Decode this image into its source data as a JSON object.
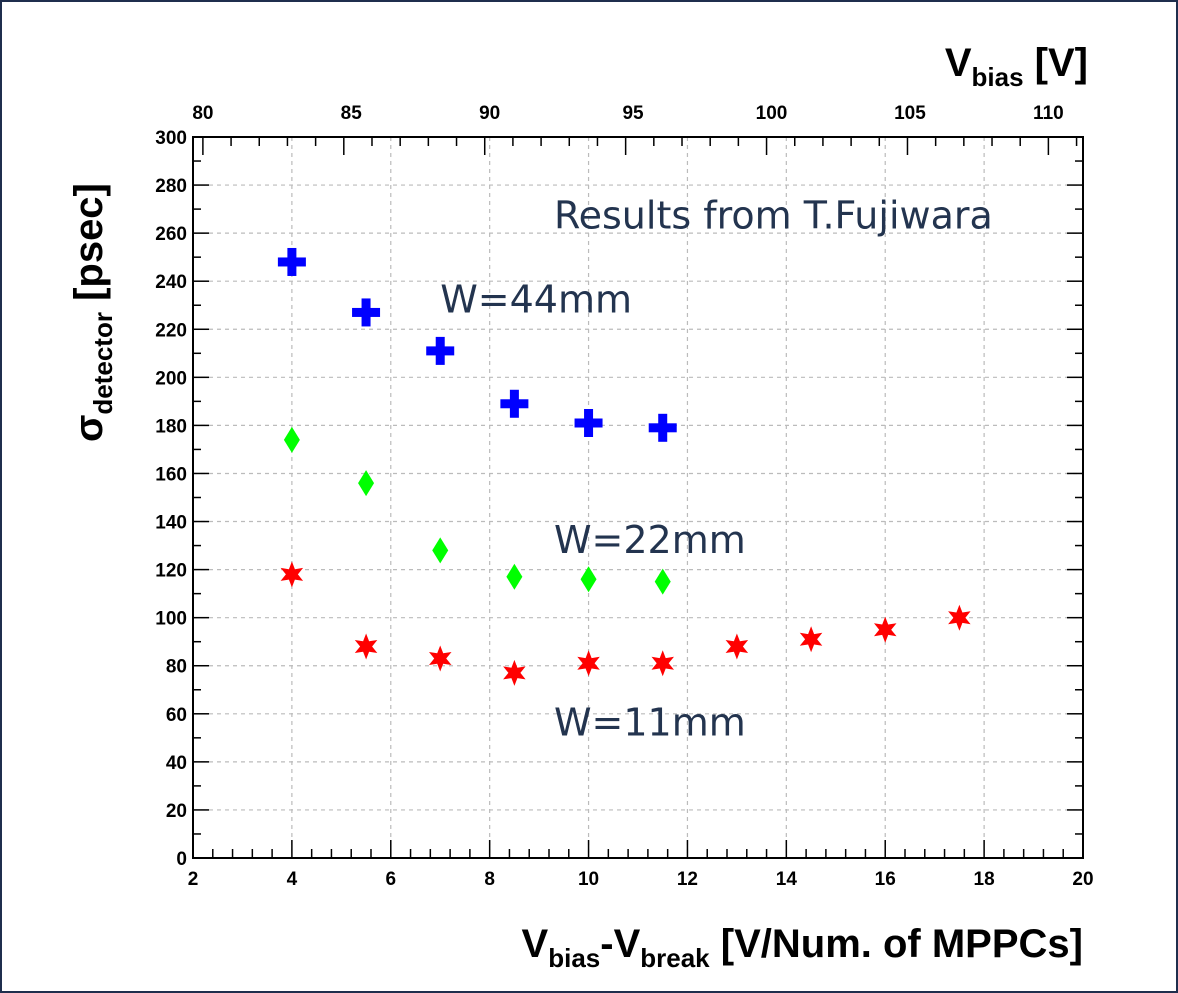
{
  "chart_data": {
    "type": "scatter",
    "title": "",
    "xlabel": {
      "main": "V",
      "sub1": "bias",
      "mid": "-V",
      "sub2": "break",
      "rest": " [V/Num. of MPPCs]"
    },
    "ylabel": {
      "main": "σ",
      "sub": "detector",
      "rest": " [psec]"
    },
    "x2label": {
      "main": "V",
      "sub": "bias",
      "rest": " [V]"
    },
    "xlim": [
      2,
      20
    ],
    "ylim": [
      0,
      300
    ],
    "x_ticks": [
      2,
      4,
      6,
      8,
      10,
      12,
      14,
      16,
      18,
      20
    ],
    "y_ticks": [
      0,
      20,
      40,
      60,
      80,
      100,
      120,
      140,
      160,
      180,
      200,
      220,
      240,
      260,
      280,
      300
    ],
    "x2_ticks": [
      {
        "label": "80",
        "x": 2.2
      },
      {
        "label": "85",
        "x": 5.2
      },
      {
        "label": "90",
        "x": 8.0
      },
      {
        "label": "95",
        "x": 10.9
      },
      {
        "label": "100",
        "x": 13.7
      },
      {
        "label": "105",
        "x": 16.5
      },
      {
        "label": "110",
        "x": 19.3
      }
    ],
    "grid": true,
    "series": [
      {
        "name": "W=44mm",
        "marker": "cross",
        "color": "#0000ff",
        "x": [
          4,
          5.5,
          7,
          8.5,
          10,
          11.5
        ],
        "y": [
          248,
          227,
          211,
          189,
          181,
          179
        ]
      },
      {
        "name": "W=22mm",
        "marker": "diamond",
        "color": "#00ff00",
        "x": [
          4,
          5.5,
          7,
          8.5,
          10,
          11.5
        ],
        "y": [
          174,
          156,
          128,
          117,
          116,
          115
        ]
      },
      {
        "name": "W=11mm",
        "marker": "star",
        "color": "#ff0000",
        "x": [
          4,
          5.5,
          7,
          8.5,
          10,
          11.5,
          13,
          14.5,
          16,
          17.5
        ],
        "y": [
          118,
          88,
          83,
          77,
          81,
          81,
          88,
          91,
          95,
          100
        ]
      }
    ],
    "annotations": [
      {
        "text": "Results from T.Fujiwara",
        "x": 9.3,
        "y": 262
      },
      {
        "text": "W=44mm",
        "x": 7.0,
        "y": 227
      },
      {
        "text": "W=22mm",
        "x": 9.3,
        "y": 127
      },
      {
        "text": "W=11mm",
        "x": 9.3,
        "y": 51
      }
    ]
  }
}
